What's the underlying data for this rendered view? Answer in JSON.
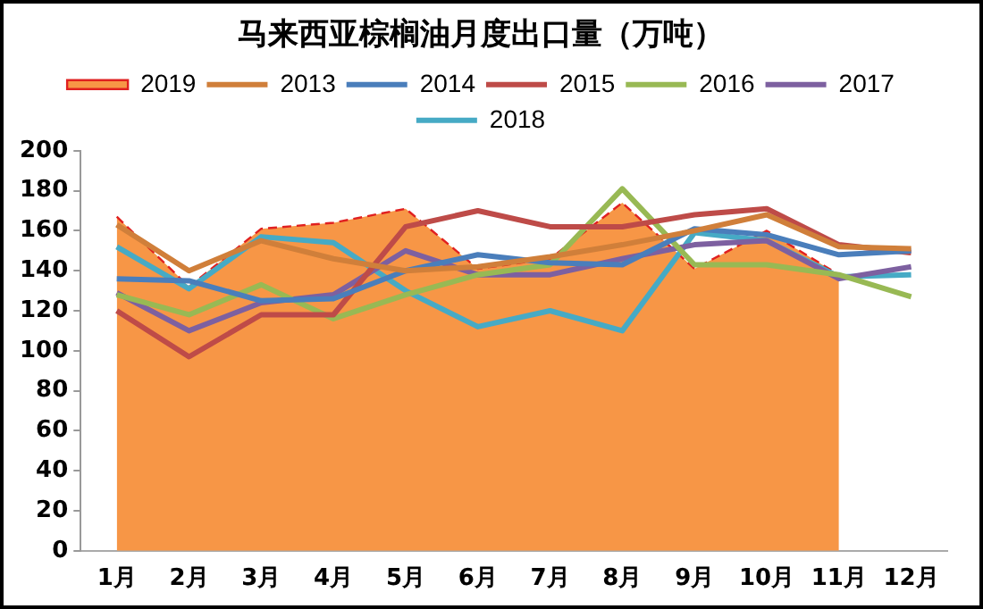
{
  "chart_data": {
    "type": "line",
    "title": "马来西亚棕榈油月度出口量（万吨）",
    "categories": [
      "1月",
      "2月",
      "3月",
      "4月",
      "5月",
      "6月",
      "7月",
      "8月",
      "9月",
      "10月",
      "11月",
      "12月"
    ],
    "series": [
      {
        "name": "2019",
        "type": "area",
        "color": "#f79646",
        "line_style": "dashed",
        "values": [
          167,
          132,
          161,
          164,
          171,
          141,
          146,
          174,
          141,
          160,
          138,
          null
        ]
      },
      {
        "name": "2013",
        "color": "#d07f3a",
        "values": [
          163,
          140,
          155,
          146,
          140,
          142,
          147,
          153,
          160,
          168,
          152,
          151
        ]
      },
      {
        "name": "2014",
        "color": "#4a7ebb",
        "values": [
          136,
          135,
          125,
          126,
          140,
          148,
          144,
          143,
          161,
          158,
          148,
          150
        ]
      },
      {
        "name": "2015",
        "color": "#be4b48",
        "values": [
          120,
          97,
          118,
          118,
          162,
          170,
          162,
          162,
          168,
          171,
          153,
          149
        ]
      },
      {
        "name": "2016",
        "color": "#98b954",
        "values": [
          128,
          118,
          133,
          116,
          128,
          138,
          143,
          181,
          143,
          143,
          138,
          127
        ]
      },
      {
        "name": "2017",
        "color": "#7d60a0",
        "values": [
          129,
          110,
          124,
          128,
          150,
          138,
          138,
          146,
          153,
          155,
          136,
          142
        ]
      },
      {
        "name": "2018",
        "color": "#46aac5",
        "values": [
          152,
          131,
          157,
          154,
          130,
          112,
          120,
          110,
          159,
          155,
          137,
          138
        ]
      }
    ],
    "ylim": [
      0,
      200
    ],
    "yticks": [
      0,
      20,
      40,
      60,
      80,
      100,
      120,
      140,
      160,
      180,
      200
    ],
    "grid": false,
    "legend": "top",
    "marker": "none",
    "line_style": "solid"
  }
}
